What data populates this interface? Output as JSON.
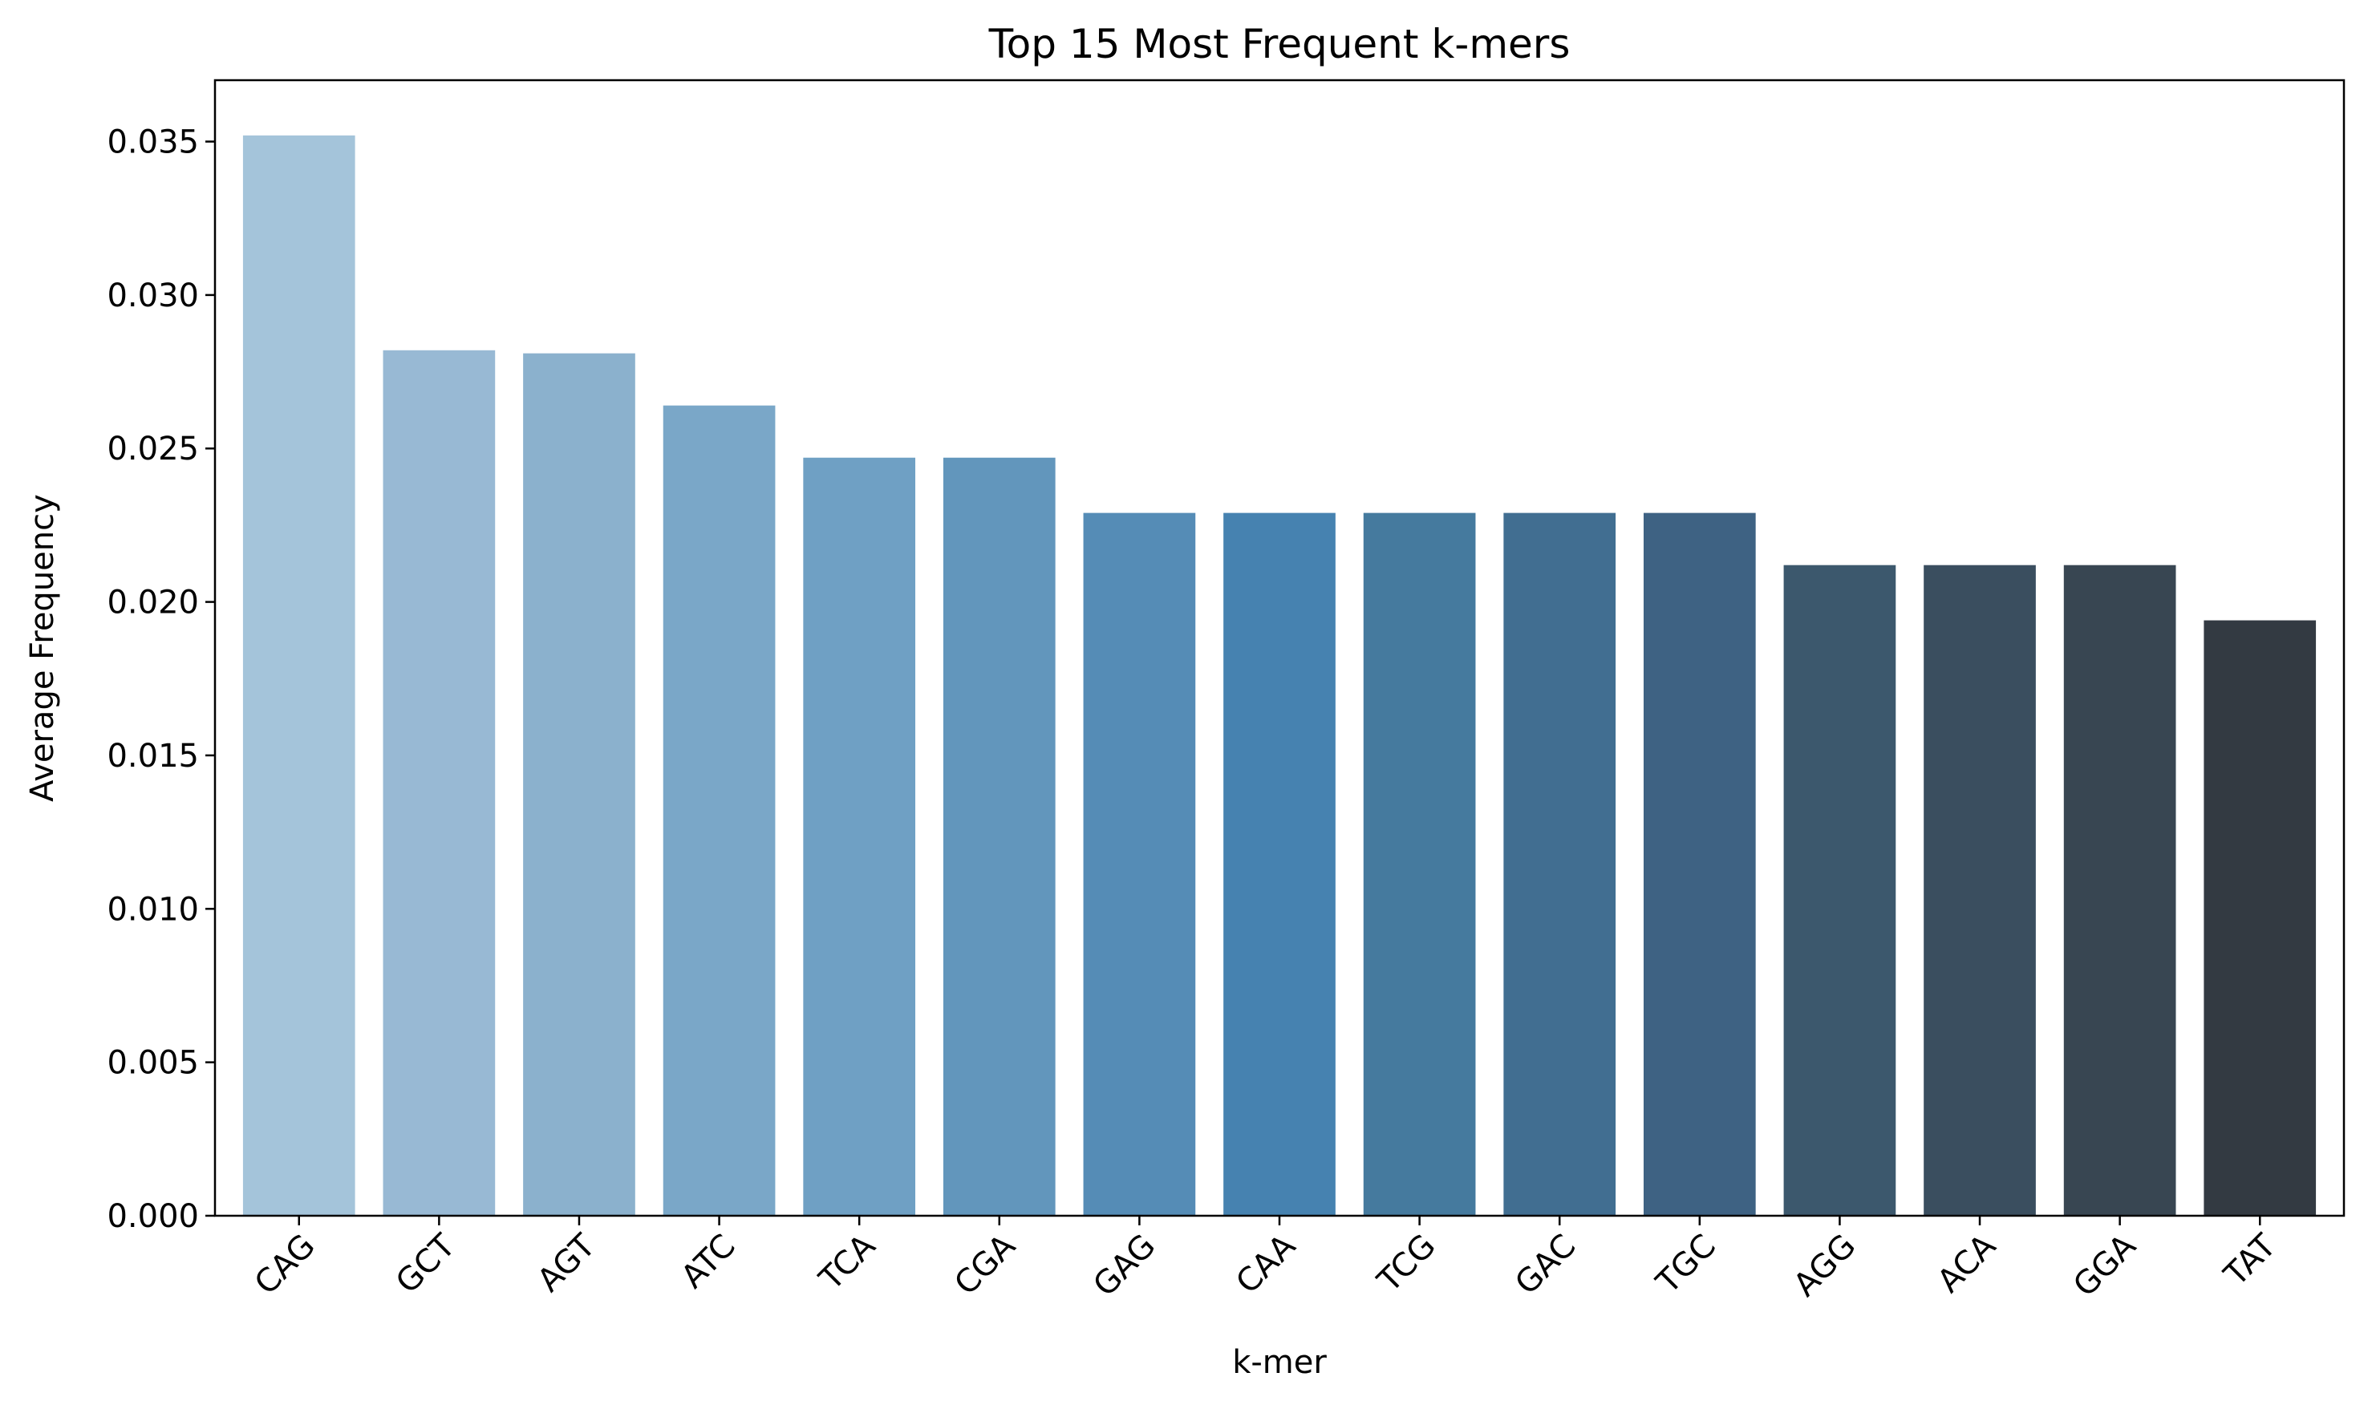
{
  "chart_data": {
    "type": "bar",
    "title": "Top 15 Most Frequent k-mers",
    "xlabel": "k-mer",
    "ylabel": "Average Frequency",
    "categories": [
      "CAG",
      "GCT",
      "AGT",
      "ATC",
      "TCA",
      "CGA",
      "GAG",
      "CAA",
      "TCG",
      "GAC",
      "TGC",
      "AGG",
      "ACA",
      "GGA",
      "TAT"
    ],
    "values": [
      0.0352,
      0.0282,
      0.0281,
      0.0264,
      0.0247,
      0.0247,
      0.0229,
      0.0229,
      0.0229,
      0.0229,
      0.0229,
      0.0212,
      0.0212,
      0.0212,
      0.0194
    ],
    "colors": [
      "#a4c4da",
      "#98b9d4",
      "#8bb1cd",
      "#7aa7c8",
      "#6fa0c4",
      "#6296bc",
      "#558cb6",
      "#4682b0",
      "#457a9e",
      "#416e91",
      "#3e6283",
      "#3c586d",
      "#3a4e5f",
      "#384652",
      "#333a42"
    ],
    "yticks": [
      "0.000",
      "0.005",
      "0.010",
      "0.015",
      "0.020",
      "0.025",
      "0.030",
      "0.035"
    ],
    "ylim": [
      0,
      0.037
    ],
    "grid": false,
    "legend": "none"
  }
}
